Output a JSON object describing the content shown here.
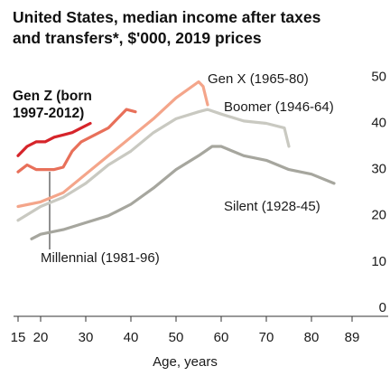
{
  "chart_data": {
    "type": "line",
    "title": "United States, median income after taxes and transfers*, $'000, 2019 prices",
    "xlabel": "Age, years",
    "xlim": [
      14,
      97
    ],
    "ylim": [
      0,
      53
    ],
    "xticks": [
      15,
      20,
      30,
      40,
      50,
      60,
      70,
      80,
      89
    ],
    "yticks": [
      0,
      10,
      20,
      30,
      40,
      50
    ],
    "grid": false,
    "series": [
      {
        "name": "Silent (1928-45)",
        "color": "#a6a69e",
        "x": [
          18,
          20,
          25,
          30,
          35,
          40,
          45,
          50,
          55,
          58,
          60,
          65,
          70,
          75,
          80,
          85
        ],
        "values": [
          15,
          16,
          17,
          18.5,
          20,
          22.5,
          26,
          30,
          33,
          35,
          35,
          33,
          32,
          30,
          29,
          27
        ]
      },
      {
        "name": "Boomer (1946-64)",
        "color": "#c9c9c1",
        "x": [
          15,
          20,
          25,
          30,
          35,
          40,
          45,
          50,
          55,
          57,
          60,
          65,
          70,
          74,
          75
        ],
        "values": [
          19,
          22,
          24,
          27,
          31,
          34,
          38,
          41,
          42.5,
          43,
          42,
          40.5,
          40,
          39,
          35
        ]
      },
      {
        "name": "Gen X (1965-80)",
        "color": "#f4a58a",
        "x": [
          15,
          20,
          25,
          30,
          35,
          40,
          45,
          50,
          55,
          56,
          57
        ],
        "values": [
          22,
          23,
          25,
          29,
          33,
          37,
          41,
          45.5,
          49,
          48,
          44
        ]
      },
      {
        "name": "Millennial (1981-96)",
        "color": "#e8705a",
        "x": [
          15,
          17,
          19,
          21,
          23,
          25,
          27,
          29,
          31,
          33,
          35,
          37,
          39,
          41
        ],
        "values": [
          29.5,
          31,
          30,
          30,
          30,
          30.5,
          34,
          36,
          37,
          38,
          39,
          41,
          43,
          42.5
        ]
      },
      {
        "name": "Gen Z (born 1997-2012)",
        "color": "#d6242a",
        "x": [
          15,
          17,
          19,
          21,
          23,
          25,
          27,
          29,
          31
        ],
        "values": [
          33,
          35,
          36,
          36,
          37,
          37.5,
          38,
          39,
          40
        ]
      }
    ]
  }
}
